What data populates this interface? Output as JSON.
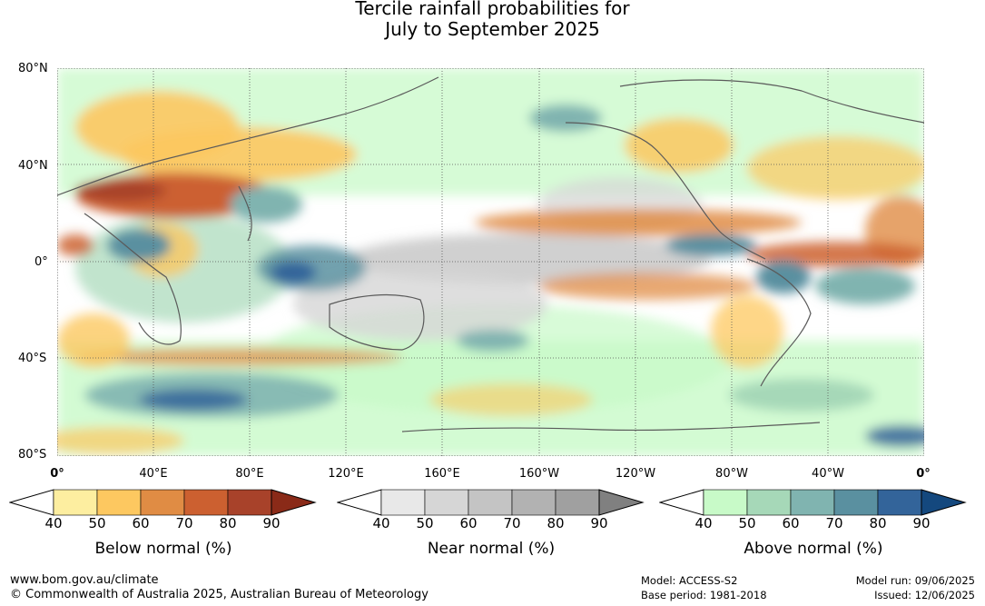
{
  "title_line1": "Tercile rainfall probabilities for",
  "title_line2": "July to September 2025",
  "lat_labels": [
    "80°N",
    "40°N",
    "0°",
    "40°S",
    "80°S"
  ],
  "lon_labels": [
    "0°",
    "40°E",
    "80°E",
    "120°E",
    "160°E",
    "160°W",
    "120°W",
    "80°W",
    "40°W",
    "0°"
  ],
  "legends": [
    {
      "title": "Below normal (%)",
      "ticks": [
        "40",
        "50",
        "60",
        "70",
        "80",
        "90"
      ],
      "colors": [
        "#fdeea0",
        "#fdc860",
        "#e08c44",
        "#cc6030",
        "#a8422a",
        "#8a2a18"
      ]
    },
    {
      "title": "Near normal (%)",
      "ticks": [
        "40",
        "50",
        "60",
        "70",
        "80",
        "90"
      ],
      "colors": [
        "#e8e8e8",
        "#d6d6d6",
        "#c4c4c4",
        "#b2b2b2",
        "#a0a0a0",
        "#808080"
      ]
    },
    {
      "title": "Above normal (%)",
      "ticks": [
        "40",
        "50",
        "60",
        "70",
        "80",
        "90"
      ],
      "colors": [
        "#c8fac8",
        "#a6d8b8",
        "#80b4b0",
        "#5a90a0",
        "#33649a",
        "#14487e"
      ]
    }
  ],
  "footer": {
    "url": "www.bom.gov.au/climate",
    "copyright": "© Commonwealth of Australia 2025, Australian Bureau of Meteorology",
    "model": "Model: ACCESS-S2",
    "base_period": "Base period: 1981-2018",
    "model_run": "Model run: 09/06/2025",
    "issued": "Issued: 12/06/2025"
  }
}
